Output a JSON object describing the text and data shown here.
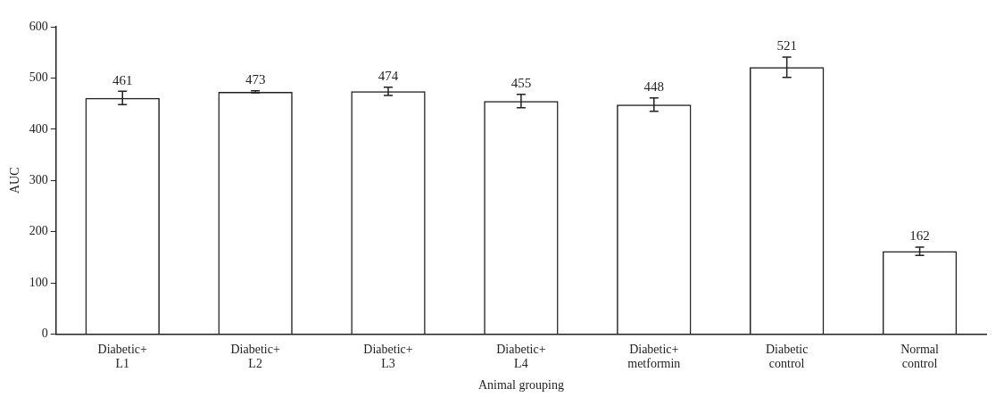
{
  "chart_data": {
    "type": "bar",
    "xlabel": "Animal grouping",
    "ylabel": "AUC",
    "categories": [
      "Diabetic+\nL1",
      "Diabetic+\nL2",
      "Diabetic+\nL3",
      "Diabetic+\nL4",
      "Diabetic+\nmetformin",
      "Diabetic\ncontrol",
      "Normal\ncontrol"
    ],
    "values": [
      461,
      473,
      474,
      455,
      448,
      521,
      162
    ],
    "errors": [
      13,
      2,
      8,
      13,
      13,
      20,
      8
    ],
    "color": "#222222",
    "ylim": [
      0,
      600
    ],
    "yticks": [
      0,
      100,
      200,
      300,
      400,
      500,
      600
    ],
    "data_labels": true,
    "grid": false,
    "legend": false
  }
}
